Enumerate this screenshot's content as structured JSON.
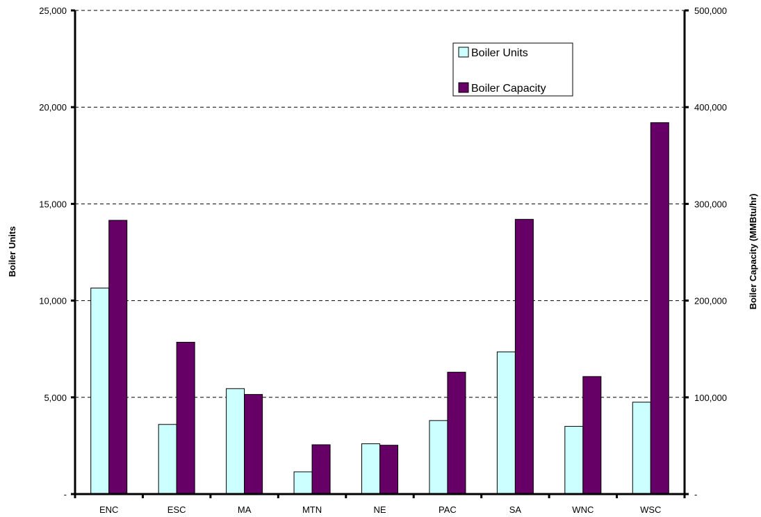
{
  "chart_data": {
    "type": "bar",
    "categories": [
      "ENC",
      "ESC",
      "MA",
      "MTN",
      "NE",
      "PAC",
      "SA",
      "WNC",
      "WSC"
    ],
    "series": [
      {
        "name": "Boiler Units",
        "axis": "left",
        "color": "#ccffff",
        "values": [
          10650,
          3600,
          5450,
          1150,
          2600,
          3800,
          7350,
          3500,
          4750
        ]
      },
      {
        "name": "Boiler Capacity",
        "axis": "right",
        "color": "#660066",
        "values": [
          283000,
          157000,
          103000,
          51000,
          50500,
          126000,
          284000,
          121500,
          384000
        ]
      }
    ],
    "ylabel": "Boiler Units",
    "y2label": "Boiler Capacity (MMBtu/hr)",
    "ylim": [
      0,
      25000
    ],
    "y2lim": [
      0,
      500000
    ],
    "yticks": [
      "-",
      "5,000",
      "10,000",
      "15,000",
      "20,000",
      "25,000"
    ],
    "y2ticks": [
      "-",
      "100,000",
      "200,000",
      "300,000",
      "400,000",
      "500,000"
    ],
    "grid": "horizontal dashed",
    "legend": "top-right"
  }
}
